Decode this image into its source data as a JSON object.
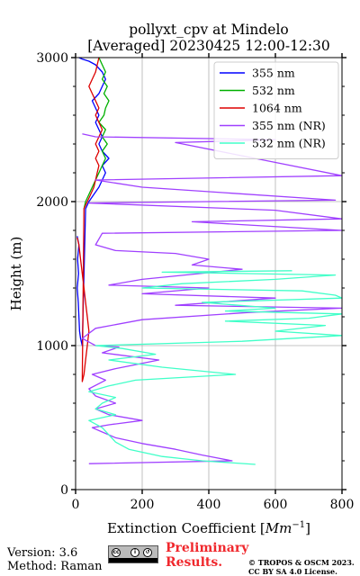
{
  "chart_data": {
    "type": "line",
    "title_line1": "pollyxt_cpv at Mindelo",
    "title_line2": "[Averaged] 20230425 12:00-12:30",
    "xlabel": "Extinction Coefficient [",
    "xlabel_unit": "Mm",
    "xlabel_exp": "−1",
    "xlabel_close": "]",
    "ylabel": "Height (m)",
    "xlim": [
      0,
      800
    ],
    "ylim": [
      0,
      3000
    ],
    "xticks": [
      0,
      200,
      400,
      600,
      800
    ],
    "yticks": [
      0,
      1000,
      2000,
      3000
    ],
    "grid": true,
    "legend_position": "top-right",
    "series": [
      {
        "name": "355 nm",
        "color": "#0000ff",
        "x": [
          5,
          10,
          6,
          9,
          5,
          8,
          10,
          12,
          15,
          20,
          30,
          40,
          55,
          70,
          80,
          90,
          80,
          100,
          80,
          70,
          80,
          70,
          60,
          70,
          60,
          50,
          70,
          80,
          90,
          80,
          60,
          40,
          20,
          10
        ],
        "y": [
          1760,
          1700,
          1600,
          1500,
          1400,
          1300,
          1200,
          1100,
          1050,
          1000,
          1950,
          2000,
          2050,
          2100,
          2150,
          2200,
          2250,
          2300,
          2350,
          2400,
          2450,
          2500,
          2550,
          2600,
          2650,
          2700,
          2750,
          2800,
          2850,
          2900,
          2950,
          2975,
          2990,
          3000
        ]
      },
      {
        "name": "532 nm",
        "color": "#00b000",
        "x": [
          25,
          30,
          40,
          50,
          60,
          70,
          80,
          90,
          80,
          95,
          80,
          90,
          70,
          85,
          90,
          100,
          85,
          95,
          80,
          90,
          70
        ],
        "y": [
          1950,
          2000,
          2050,
          2100,
          2150,
          2200,
          2250,
          2300,
          2350,
          2400,
          2450,
          2500,
          2550,
          2600,
          2650,
          2700,
          2750,
          2800,
          2850,
          2900,
          3000
        ]
      },
      {
        "name": "1064 nm",
        "color": "#dd0000",
        "x": [
          5,
          10,
          15,
          20,
          25,
          30,
          35,
          40,
          35,
          30,
          25,
          20,
          25,
          35,
          45,
          55,
          60,
          65,
          70,
          60,
          70,
          60,
          70,
          80,
          70,
          60,
          70,
          60,
          50,
          40,
          60,
          70
        ],
        "y": [
          1750,
          1700,
          1600,
          1500,
          1400,
          1300,
          1200,
          1100,
          1000,
          900,
          800,
          750,
          1950,
          2000,
          2050,
          2100,
          2150,
          2200,
          2250,
          2300,
          2350,
          2400,
          2450,
          2500,
          2550,
          2600,
          2650,
          2700,
          2750,
          2800,
          2900,
          3000
        ]
      },
      {
        "name": "355 nm (NR)",
        "color": "#a040ff",
        "x": [
          40,
          470,
          380,
          300,
          200,
          120,
          80,
          50,
          100,
          200,
          100,
          60,
          120,
          60,
          40,
          90,
          50,
          120,
          250,
          80,
          130,
          60,
          20,
          60,
          200,
          520,
          800,
          300,
          600,
          200,
          400,
          100,
          200,
          500,
          350,
          400,
          300,
          120,
          60,
          80,
          800,
          500,
          350,
          800,
          600,
          40,
          400,
          780,
          200,
          60,
          800,
          300,
          600,
          60,
          40,
          20
        ],
        "y": [
          180,
          200,
          240,
          280,
          320,
          360,
          400,
          430,
          450,
          480,
          520,
          560,
          600,
          650,
          700,
          760,
          800,
          840,
          900,
          950,
          990,
          1000,
          1050,
          1120,
          1180,
          1230,
          1260,
          1280,
          1330,
          1360,
          1400,
          1420,
          1460,
          1530,
          1560,
          1600,
          1640,
          1660,
          1700,
          1780,
          1800,
          1840,
          1860,
          1880,
          1940,
          1990,
          2000,
          2010,
          2100,
          2150,
          2180,
          2410,
          2430,
          2450,
          2460,
          2470
        ]
      },
      {
        "name": "532 nm (NR)",
        "color": "#40ffc8",
        "x": [
          540,
          380,
          260,
          160,
          120,
          100,
          80,
          40,
          120,
          60,
          80,
          120,
          40,
          100,
          180,
          480,
          260,
          100,
          240,
          140,
          60,
          500,
          800,
          600,
          750,
          450,
          700,
          800,
          450,
          600,
          380,
          800,
          780,
          680,
          200,
          320,
          600,
          780,
          260,
          650
        ],
        "y": [
          175,
          200,
          230,
          280,
          330,
          380,
          430,
          480,
          520,
          560,
          600,
          640,
          680,
          720,
          760,
          800,
          850,
          900,
          940,
          980,
          1000,
          1030,
          1070,
          1100,
          1140,
          1170,
          1190,
          1220,
          1240,
          1260,
          1300,
          1330,
          1350,
          1380,
          1400,
          1430,
          1460,
          1490,
          1510,
          1520
        ]
      }
    ]
  },
  "footer": {
    "version": "Version: 3.6",
    "method": "Method: Raman",
    "preliminary_line1": "Preliminary",
    "preliminary_line2": "Results.",
    "copyright_line1": "© TROPOS & OSCM 2023.",
    "copyright_line2": "CC BY SA 4.0 License.",
    "license_icon": "cc-by-sa-badge",
    "colors": {
      "preliminary": "#f0282d"
    }
  }
}
